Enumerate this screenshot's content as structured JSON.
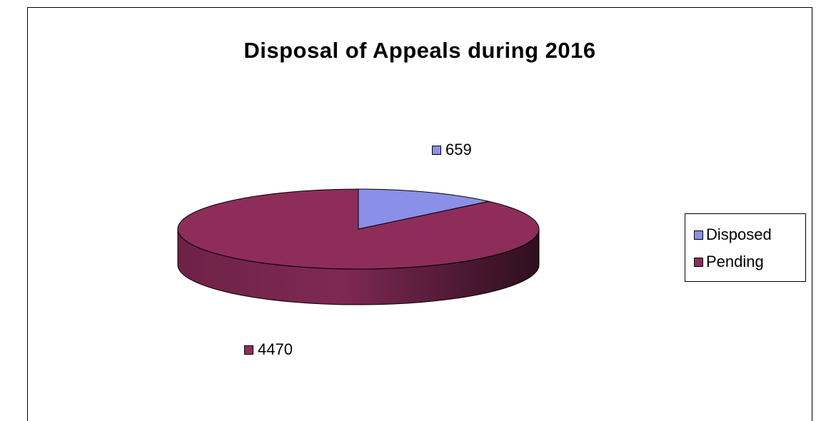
{
  "chart_data": {
    "type": "pie",
    "title": "Disposal of Appeals during 2016",
    "categories": [
      "Disposed",
      "Pending"
    ],
    "values": [
      659,
      4470
    ],
    "colors": [
      "#8b8fe8",
      "#8e2d5a"
    ],
    "legend": {
      "placement": "right",
      "entries": [
        "Disposed",
        "Pending"
      ]
    },
    "data_labels": [
      "659",
      "4470"
    ],
    "style": "3d"
  }
}
